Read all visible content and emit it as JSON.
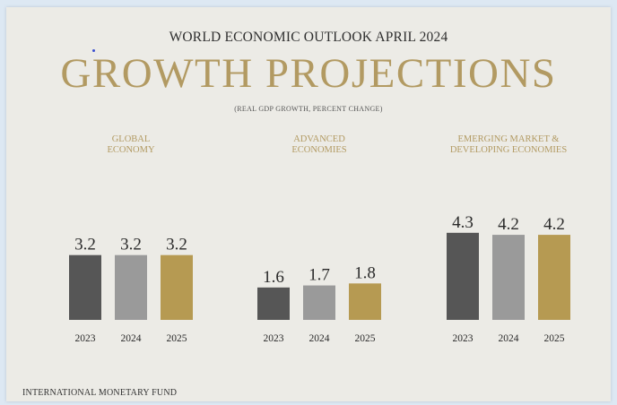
{
  "header": {
    "super_title": "WORLD ECONOMIC OUTLOOK APRIL 2024",
    "title": "GROWTH PROJECTIONS",
    "subtitle": "(REAL GDP GROWTH, PERCENT CHANGE)"
  },
  "footer": {
    "source": "INTERNATIONAL MONETARY FUND"
  },
  "colors": {
    "2023": "#565656",
    "2024": "#9a9a9a",
    "2025": "#b69a52",
    "accent": "#b29a62"
  },
  "chart_data": {
    "type": "bar",
    "title": "GROWTH PROJECTIONS",
    "subtitle": "(REAL GDP GROWTH, PERCENT CHANGE)",
    "categories": [
      "2023",
      "2024",
      "2025"
    ],
    "groups": [
      {
        "label": [
          "GLOBAL",
          "ECONOMY"
        ],
        "values": [
          3.2,
          3.2,
          3.2
        ],
        "value_labels": [
          "3.2",
          "3.2",
          "3.2"
        ]
      },
      {
        "label": [
          "ADVANCED",
          "ECONOMIES"
        ],
        "values": [
          1.6,
          1.7,
          1.8
        ],
        "value_labels": [
          "1.6",
          "1.7",
          "1.8"
        ]
      },
      {
        "label": [
          "EMERGING MARKET &",
          "DEVELOPING ECONOMIES"
        ],
        "values": [
          4.3,
          4.2,
          4.2
        ],
        "value_labels": [
          "4.3",
          "4.2",
          "4.2"
        ]
      }
    ],
    "grid": false
  }
}
